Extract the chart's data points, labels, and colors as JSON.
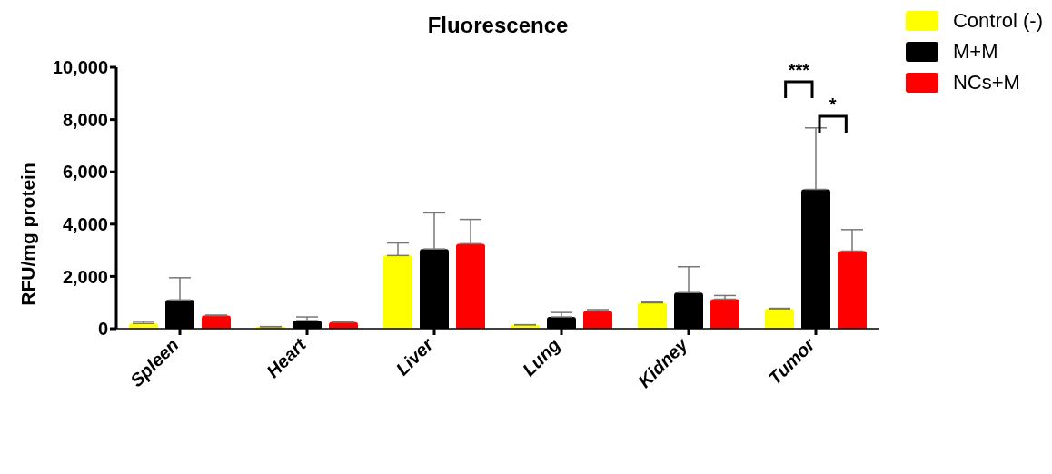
{
  "chart_data": {
    "type": "bar",
    "title": "Fluorescence",
    "ylabel": "RFU/mg protein",
    "categories": [
      "Spleen",
      "Heart",
      "Liver",
      "Lung",
      "Kidney",
      "Tumor"
    ],
    "series": [
      {
        "name": "Control (-)",
        "color": "#ffff00",
        "values": [
          200,
          80,
          2800,
          150,
          990,
          760
        ],
        "errors": [
          [
            200,
            280
          ],
          null,
          [
            2800,
            3280
          ],
          null,
          [
            990,
            1020
          ],
          [
            760,
            780
          ]
        ]
      },
      {
        "name": "M+M",
        "color": "#000000",
        "values": [
          1100,
          310,
          3050,
          450,
          1380,
          5330
        ],
        "errors": [
          [
            1100,
            1950
          ],
          [
            310,
            450
          ],
          [
            3050,
            4430
          ],
          [
            450,
            620
          ],
          [
            1380,
            2370
          ],
          [
            5330,
            7680
          ]
        ]
      },
      {
        "name": "NCs+M",
        "color": "#ff0000",
        "values": [
          500,
          250,
          3250,
          680,
          1130,
          2970
        ],
        "errors": [
          [
            500,
            520
          ],
          [
            250,
            260
          ],
          [
            3250,
            4180
          ],
          [
            680,
            730
          ],
          [
            1130,
            1270
          ],
          [
            2970,
            3790
          ]
        ]
      }
    ],
    "ylim": [
      0,
      10000
    ],
    "yticks": [
      {
        "value": 0,
        "label": "0"
      },
      {
        "value": 2000,
        "label": "2,000"
      },
      {
        "value": 4000,
        "label": "4,000"
      },
      {
        "value": 6000,
        "label": "6,000"
      },
      {
        "value": 8000,
        "label": "8,000"
      },
      {
        "value": 10000,
        "label": "10,000"
      }
    ],
    "grid": false,
    "legend": "top right",
    "annotations": [
      "***",
      "*"
    ]
  }
}
